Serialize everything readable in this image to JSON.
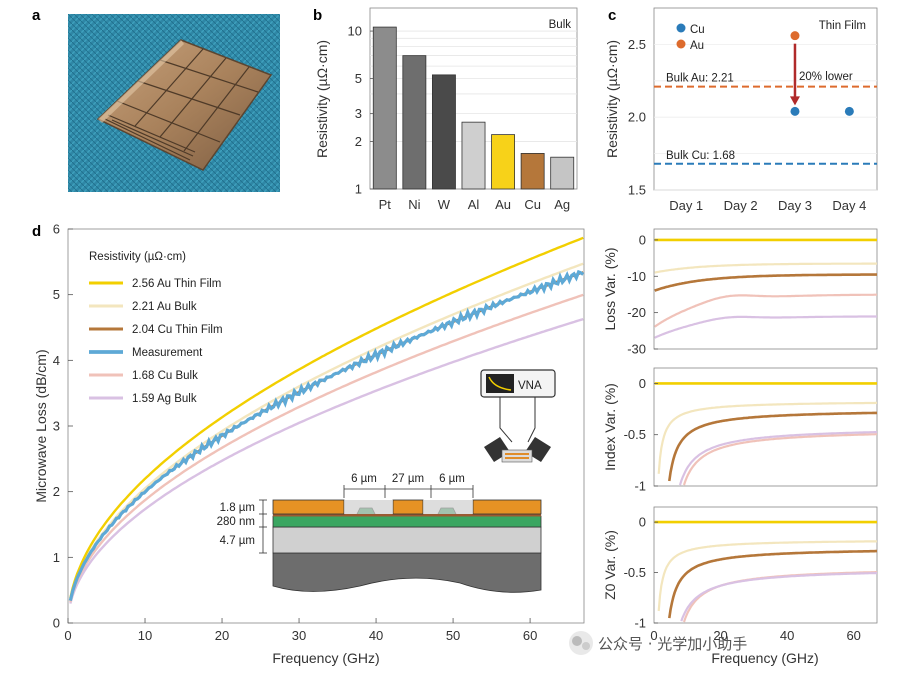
{
  "panels": {
    "a": "a",
    "b": "b",
    "c": "c",
    "d": "d"
  },
  "watermark": "公众号 · 光学加小助手",
  "colors": {
    "au_film": "#f2cf00",
    "au_bulk": "#f3e6be",
    "cu_film": "#b5773a",
    "measurement": "#5ea9d6",
    "cu_bulk": "#f0c2b9",
    "ag_bulk": "#d9c1e3",
    "cu_dot": "#2a7bb9",
    "au_dot": "#dd6b2d",
    "arrow": "#b02a2a"
  },
  "chart_data": [
    {
      "id": "b",
      "type": "bar",
      "annotation": "Bulk",
      "ylabel": "Resistivity (µΩ·cm)",
      "yscale": "log",
      "ylim": [
        1,
        14
      ],
      "yticks": [
        1,
        2,
        3,
        5,
        10
      ],
      "categories": [
        "Pt",
        "Ni",
        "W",
        "Al",
        "Au",
        "Cu",
        "Ag"
      ],
      "values": [
        10.6,
        6.99,
        5.28,
        2.65,
        2.21,
        1.68,
        1.59
      ],
      "bar_colors": [
        "#8c8c8c",
        "#6e6e6e",
        "#4a4a4a",
        "#cfcfcf",
        "#f7d219",
        "#b5773a",
        "#c5c5c5"
      ]
    },
    {
      "id": "c",
      "type": "scatter",
      "annotation": "Thin Film",
      "ylabel": "Resistivity (µΩ·cm)",
      "ylim": [
        1.5,
        2.75
      ],
      "yticks": [
        "1.5",
        "2.0",
        "2.5"
      ],
      "categories": [
        "Day 1",
        "Day 2",
        "Day 3",
        "Day 4"
      ],
      "series": [
        {
          "name": "Cu",
          "points": [
            {
              "x": 3,
              "y": 2.04
            },
            {
              "x": 4,
              "y": 2.04
            }
          ]
        },
        {
          "name": "Au",
          "points": [
            {
              "x": 3,
              "y": 2.56
            }
          ]
        }
      ],
      "reference_lines": [
        {
          "label": "Bulk Au: 2.21",
          "y": 2.21
        },
        {
          "label": "Bulk Cu: 1.68",
          "y": 1.68
        }
      ],
      "arrow_label": "20% lower"
    },
    {
      "id": "d",
      "type": "line",
      "legend_title": "Resistivity (µΩ·cm)",
      "xlabel": "Frequency (GHz)",
      "ylabel": "Microwave Loss (dB/cm)",
      "xlim": [
        0,
        67
      ],
      "ylim": [
        0,
        6
      ],
      "xticks": [
        0,
        10,
        20,
        30,
        40,
        50,
        60
      ],
      "yticks": [
        0,
        1,
        2,
        3,
        4,
        5,
        6
      ],
      "series": [
        {
          "name": "2.56 Au Thin Film",
          "k": 0.716
        },
        {
          "name": "2.21 Au Bulk",
          "k": 0.668
        },
        {
          "name": "2.04 Cu Thin Film",
          "k": 0.652
        },
        {
          "name": "Measurement",
          "k": 0.652
        },
        {
          "name": "1.68 Cu Bulk",
          "k": 0.61
        },
        {
          "name": "1.59 Ag Bulk",
          "k": 0.565
        }
      ],
      "inset": {
        "instrument": "VNA",
        "dims": [
          "6 µm",
          "27 µm",
          "6 µm"
        ],
        "layers": [
          "1.8 µm",
          "280 nm",
          "4.7 µm"
        ]
      }
    },
    {
      "id": "loss_var",
      "type": "line",
      "ylabel": "Loss Var. (%)",
      "xlim": [
        0,
        67
      ],
      "ylim": [
        -30,
        3
      ],
      "yticks": [
        0,
        -10,
        -20,
        -30
      ],
      "series": [
        {
          "name": "Au Thin Film",
          "start": 0,
          "end": 0
        },
        {
          "name": "Au Bulk",
          "start": -9,
          "end": -6.5
        },
        {
          "name": "Cu Thin Film",
          "start": -14,
          "end": -9.5
        },
        {
          "name": "Cu Bulk",
          "start": -24,
          "end": -15
        },
        {
          "name": "Ag Bulk",
          "start": -27,
          "end": -21
        }
      ]
    },
    {
      "id": "index_var",
      "type": "line",
      "ylabel": "Index Var. (%)",
      "xlim": [
        0,
        67
      ],
      "ylim": [
        -1,
        0.15
      ],
      "yticks": [
        "0",
        "-0.5",
        "-1"
      ],
      "series": [
        {
          "name": "Au Thin Film",
          "end": 0
        },
        {
          "name": "Au Bulk",
          "end": -0.17
        },
        {
          "name": "Cu Thin Film",
          "end": -0.25
        },
        {
          "name": "Cu Bulk",
          "end": -0.44
        },
        {
          "name": "Ag Bulk",
          "end": -0.42
        }
      ]
    },
    {
      "id": "z0_var",
      "type": "line",
      "ylabel": "Z0 Var. (%)",
      "xlabel": "Frequency (GHz)",
      "xlim": [
        0,
        67
      ],
      "ylim": [
        -1,
        0.15
      ],
      "yticks": [
        "0",
        "-0.5",
        "-1"
      ],
      "xticks": [
        0,
        20,
        40,
        60
      ],
      "series": [
        {
          "name": "Au Thin Film",
          "end": 0
        },
        {
          "name": "Au Bulk",
          "end": -0.17
        },
        {
          "name": "Cu Thin Film",
          "end": -0.25
        },
        {
          "name": "Cu Bulk",
          "end": -0.44
        },
        {
          "name": "Ag Bulk",
          "end": -0.45
        }
      ]
    }
  ]
}
